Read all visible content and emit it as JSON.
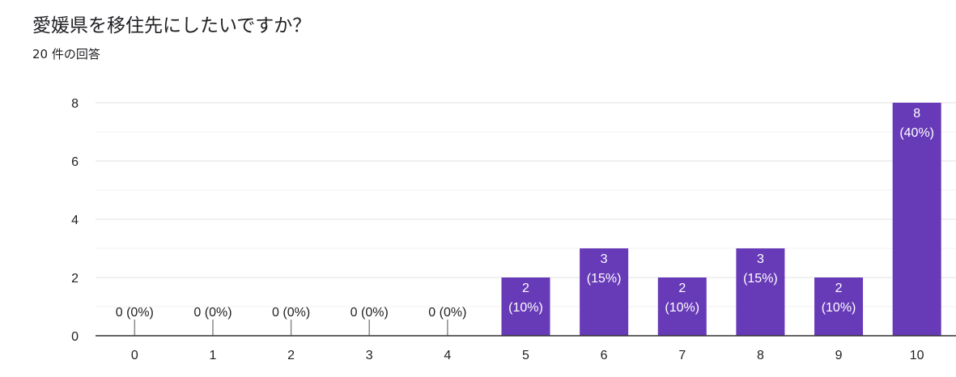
{
  "question": {
    "title": "愛媛県を移住先にしたいですか？",
    "response_count": "20 件の回答"
  },
  "chart_data": {
    "type": "bar",
    "title": "愛媛県を移住先にしたいですか？",
    "subtitle": "20 件の回答",
    "categories": [
      "0",
      "1",
      "2",
      "3",
      "4",
      "5",
      "6",
      "7",
      "8",
      "9",
      "10"
    ],
    "values": [
      0,
      0,
      0,
      0,
      0,
      2,
      3,
      2,
      3,
      2,
      8
    ],
    "percentages": [
      "0%",
      "0%",
      "0%",
      "0%",
      "0%",
      "10%",
      "15%",
      "10%",
      "15%",
      "10%",
      "40%"
    ],
    "data_labels": [
      "0 (0%)",
      "0 (0%)",
      "0 (0%)",
      "0 (0%)",
      "0 (0%)",
      "2 (10%)",
      "3 (15%)",
      "2 (10%)",
      "3 (15%)",
      "2 (10%)",
      "8 (40%)"
    ],
    "yticks": [
      0,
      2,
      4,
      6,
      8
    ],
    "ylim": [
      0,
      8
    ],
    "xlabel": "",
    "ylabel": "",
    "grid": true,
    "bar_color": "#673ab7",
    "label_color_inside": "#ffffff",
    "label_color_outside": "#202124"
  }
}
